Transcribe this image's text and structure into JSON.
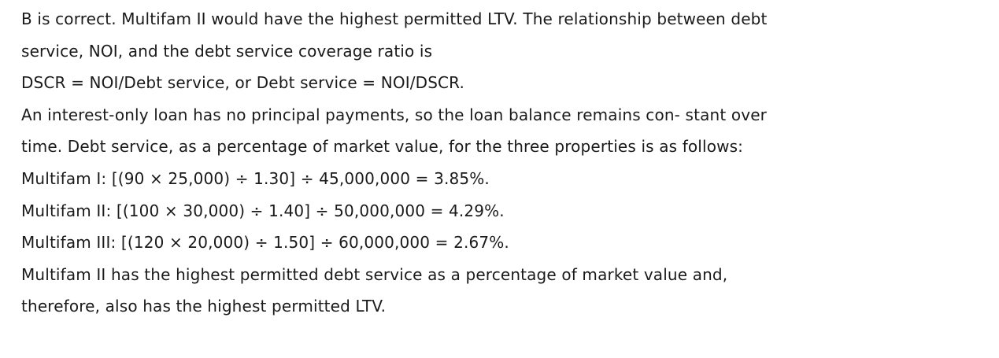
{
  "lines": [
    "B is correct. Multifam II would have the highest permitted LTV. The relationship between debt",
    "service, NOI, and the debt service coverage ratio is",
    "DSCR = NOI/Debt service, or Debt service = NOI/DSCR.",
    "An interest-only loan has no principal payments, so the loan balance remains con- stant over",
    "time. Debt service, as a percentage of market value, for the three properties is as follows:",
    "Multifam I: [(90 × 25,000) ÷ 1.30] ÷ 45,000,000 = 3.85%.",
    "Multifam II: [(100 × 30,000) ÷ 1.40] ÷ 50,000,000 = 4.29%.",
    "Multifam III: [(120 × 20,000) ÷ 1.50] ÷ 60,000,000 = 2.67%.",
    "Multifam II has the highest permitted debt service as a percentage of market value and,",
    "therefore, also has the highest permitted LTV."
  ]
}
